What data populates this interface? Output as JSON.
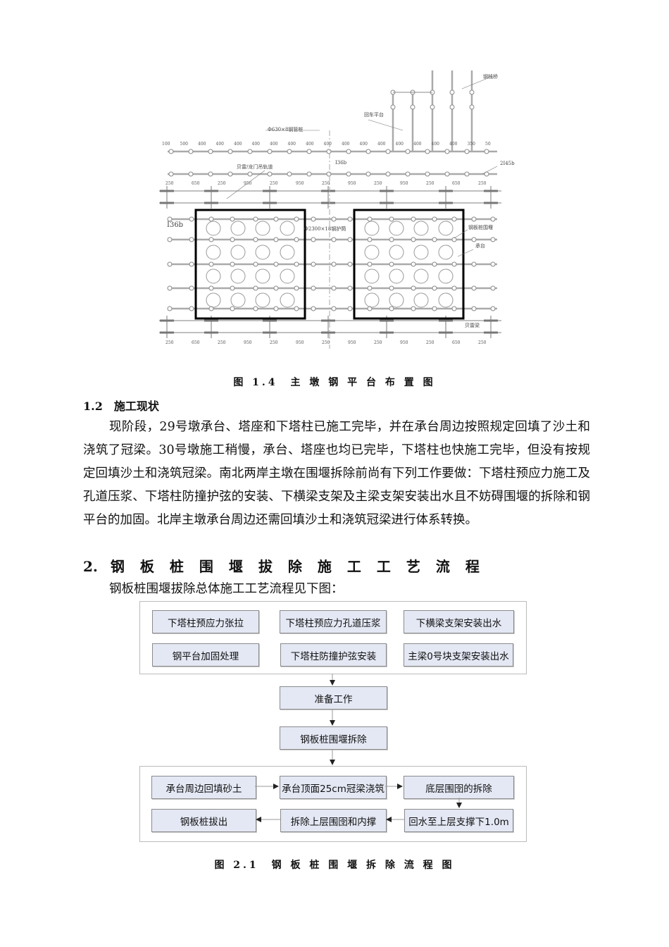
{
  "figure1": {
    "caption": "图 1.4　主 墩 钢 平 台 布 置 图",
    "labels": {
      "trestle": "钢栈桥",
      "turnaround": "回车平台",
      "pipe_pile": "Φ630×8钢管桩",
      "rail": "贝雷/龙门吊轨道",
      "i36b_top": "I36b",
      "i36b_left": "I36b",
      "beam_2i45b": "2I45b",
      "casing": "Φ2300×18钢护筒",
      "cofferdam": "钢板桩围堰",
      "cap": "承台",
      "bailey": "贝雷梁"
    },
    "top_dims": [
      "100",
      "500",
      "400",
      "400",
      "400",
      "400",
      "400",
      "400",
      "400",
      "400",
      "400",
      "400",
      "400",
      "400",
      "400",
      "400",
      "400",
      "350",
      "50"
    ],
    "rail_dims": [
      "250",
      "650",
      "250",
      "950",
      "250",
      "950",
      "250",
      "950",
      "250",
      "950",
      "250",
      "650",
      "250"
    ]
  },
  "section_1_2": {
    "heading": "1.2　施工现状",
    "paragraph": "现阶段，29号墩承台、塔座和下塔柱已施工完毕，并在承台周边按照规定回填了沙土和浇筑了冠梁。30号墩施工稍慢，承台、塔座也均已完毕，下塔柱也快施工完毕，但没有按规定回填沙土和浇筑冠梁。南北两岸主墩在围堰拆除前尚有下列工作要做：下塔柱预应力施工及孔道压浆、下塔柱防撞护弦的安装、下横梁支架及主梁支架安装出水且不妨碍围堰的拆除和钢平台的加固。北岸主墩承台周边还需回填沙土和浇筑冠梁进行体系转换。"
  },
  "section_2": {
    "number": "2.",
    "heading": "钢板桩围堰拔除施工工艺流程",
    "intro": "钢板桩围堰拔除总体施工工艺流程见下图："
  },
  "flowchart": {
    "group1": [
      "下塔柱预应力张拉",
      "下塔柱预应力孔道压浆",
      "下横梁支架安装出水",
      "钢平台加固处理",
      "下塔柱防撞护弦安装",
      "主梁0号块支架安装出水"
    ],
    "prep": "准备工作",
    "remove": "钢板桩围堰拆除",
    "group2": [
      "承台周边回填砂土",
      "承台顶面25cm冠梁浇筑",
      "底层围囹的拆除",
      "钢板桩拔出",
      "拆除上层围囹和内撑",
      "回水至上层支撑下1.0m"
    ],
    "caption": "图 2.1　钢 板 桩 围 堰 拆 除 流 程 图",
    "box_fill": "#e4e8f4"
  }
}
